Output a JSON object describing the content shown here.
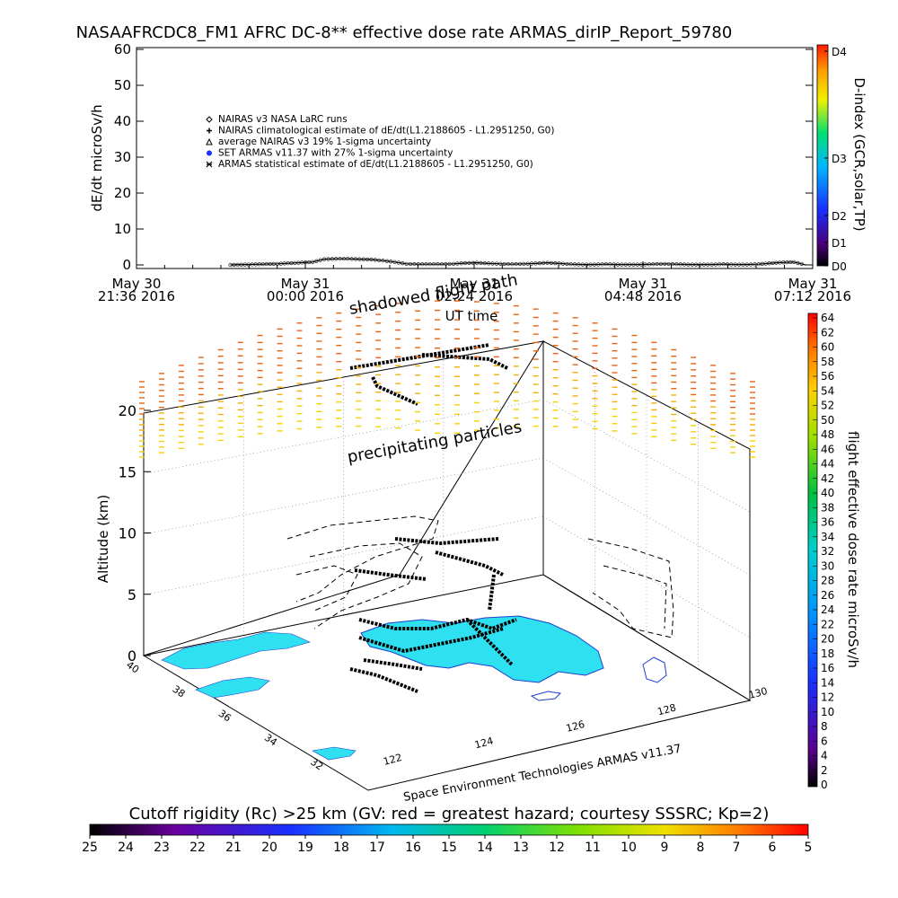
{
  "title": "NASAAFRCDC8_FM1 AFRC DC-8** effective dose rate ARMAS_dirIP_Report_59780",
  "chart_data": [
    {
      "type": "line",
      "ylabel": "dE/dt microSv/h",
      "xlabel": "UT time",
      "ylim": [
        0,
        60
      ],
      "yticks": [
        "0",
        "10",
        "20",
        "30",
        "40",
        "50",
        "60"
      ],
      "xticks": [
        {
          "line1": "May 30",
          "line2": "21:36 2016"
        },
        {
          "line1": "May 31",
          "line2": "00:00 2016"
        },
        {
          "line1": "May 31",
          "line2": "02:24 2016"
        },
        {
          "line1": "May 31",
          "line2": "04:48 2016"
        },
        {
          "line1": "May 31",
          "line2": "07:12 2016"
        }
      ],
      "legend_placement": "upper-left",
      "legend": [
        {
          "symbol": "diamond",
          "label": "NAIRAS v3 NASA LaRC runs"
        },
        {
          "symbol": "plus",
          "label": "NAIRAS climatological estimate of dE/dt(L1.2188605 - L1.2951250, G0)"
        },
        {
          "symbol": "triangle",
          "label": "average NAIRAS v3 19% 1-sigma uncertainty"
        },
        {
          "symbol": "filled-circle-blue",
          "label": "SET ARMAS v11.37 with 27% 1-sigma uncertainty"
        },
        {
          "symbol": "asterisk",
          "label": "ARMAS statistical estimate of dE/dt(L1.2188605 - L1.2951250, G0)"
        }
      ],
      "series_x_minutes_from_2136": [
        80,
        120,
        150,
        160,
        170,
        180,
        190,
        200,
        210,
        220,
        230,
        240,
        250,
        260,
        270,
        280,
        290,
        300,
        310,
        320,
        330,
        340,
        350,
        360,
        370,
        380,
        390,
        400,
        410,
        420,
        430,
        440,
        450,
        460,
        470,
        480,
        490,
        500,
        510,
        520,
        530,
        545,
        560,
        570
      ],
      "series_values": [
        0,
        0.3,
        0.8,
        1.6,
        1.7,
        1.7,
        1.6,
        1.5,
        1.2,
        0.8,
        0.3,
        0.2,
        0.2,
        0.2,
        0.3,
        0.5,
        0.6,
        0.4,
        0.3,
        0.2,
        0.3,
        0.4,
        0.6,
        0.4,
        0.2,
        0.1,
        0.1,
        0.2,
        0.1,
        0.1,
        0.1,
        0.2,
        0.3,
        0.2,
        0.1,
        0.1,
        0.1,
        0.2,
        0.1,
        0.1,
        0.2,
        0.6,
        0.8,
        0
      ],
      "colorbar": {
        "label": "D-index (GCR,solar,TP)",
        "ticks": [
          "D0",
          "D1",
          "D2",
          "D3",
          "D4"
        ]
      }
    },
    {
      "type": "scatter",
      "ylabel": "Altitude (km)",
      "zticks": [
        "0",
        "5",
        "10",
        "15",
        "20"
      ],
      "xticks": [
        "122",
        "124",
        "126",
        "128",
        "130"
      ],
      "yticks": [
        "32",
        "34",
        "36",
        "38",
        "40"
      ],
      "annotations": [
        "shadowed flight path",
        "precipitating particles"
      ],
      "footer": "Space Environment Technologies ARMAS v11.37",
      "colorbar": {
        "label": "flight effective dose rate microSv/h",
        "ticks": [
          "0",
          "2",
          "4",
          "6",
          "8",
          "10",
          "12",
          "14",
          "16",
          "18",
          "20",
          "22",
          "24",
          "26",
          "28",
          "30",
          "32",
          "34",
          "36",
          "38",
          "40",
          "42",
          "44",
          "46",
          "48",
          "50",
          "52",
          "54",
          "56",
          "58",
          "60",
          "62",
          "64"
        ]
      },
      "flight_path_km": [
        {
          "lon": 122.2,
          "lat": 35.0,
          "alt": 0.2
        },
        {
          "lon": 124.5,
          "lat": 35.6,
          "alt": 0.5
        },
        {
          "lon": 126.8,
          "lat": 36.2,
          "alt": 0.8
        },
        {
          "lon": 127.2,
          "lat": 36.6,
          "alt": 4.5
        },
        {
          "lon": 126.0,
          "lat": 37.0,
          "alt": 8.0
        },
        {
          "lon": 124.0,
          "lat": 37.2,
          "alt": 8.2
        },
        {
          "lon": 126.5,
          "lat": 37.8,
          "alt": 8.3
        },
        {
          "lon": 127.5,
          "lat": 36.0,
          "alt": 2.0
        }
      ]
    },
    {
      "type": "heatmap",
      "xlabel": "Cutoff rigidity (Rc) >25 km (GV: red = greatest hazard; courtesy SSSRC; Kp=2)",
      "ticks": [
        "25",
        "24",
        "23",
        "22",
        "21",
        "20",
        "19",
        "18",
        "17",
        "16",
        "15",
        "14",
        "13",
        "12",
        "11",
        "10",
        "9",
        "8",
        "7",
        "6",
        "5"
      ]
    }
  ],
  "colors": {
    "land": "#2fe0f0",
    "coast": "#1f3fcf",
    "dose_high": "#e86410",
    "dose_mid": "#f8d000"
  }
}
